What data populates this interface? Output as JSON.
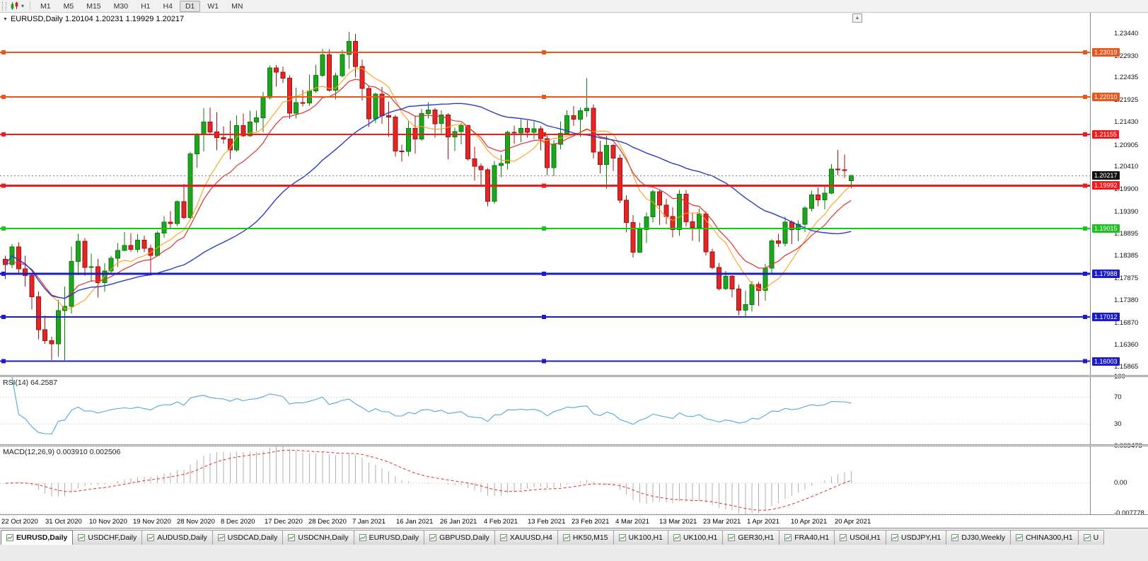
{
  "toolbar": {
    "timeframes": [
      "M1",
      "M5",
      "M15",
      "M30",
      "H1",
      "H4",
      "D1",
      "W1",
      "MN"
    ],
    "active_timeframe": "D1"
  },
  "icons": {
    "one_click": "▼",
    "shift_marker": "▲",
    "dropdown": "▾"
  },
  "chart": {
    "header_text": "EURUSD,Daily 1.20104 1.20231 1.19929 1.20217",
    "symbol": "EURUSD,Daily",
    "open": "1.20104",
    "high": "1.20231",
    "low": "1.19929",
    "close": "1.20217"
  },
  "chart_data": {
    "type": "candlestick",
    "symbol": "EURUSD",
    "timeframe": "Daily",
    "price_axis_ticks": [
      "1.23440",
      "1.22930",
      "1.22435",
      "1.21925",
      "1.21430",
      "1.20905",
      "1.20410",
      "1.19900",
      "1.19390",
      "1.18895",
      "1.18385",
      "1.17875",
      "1.17380",
      "1.16870",
      "1.16360",
      "1.15865"
    ],
    "current_price": {
      "value": 1.20217,
      "label": "1.20217"
    },
    "hlines": [
      {
        "price": 1.23019,
        "label": "1.23019",
        "color": "#e8571e",
        "width": 2
      },
      {
        "price": 1.2201,
        "label": "1.22010",
        "color": "#e8571e",
        "width": 2
      },
      {
        "price": 1.21155,
        "label": "1.21155",
        "color": "#ee1c1c",
        "width": 2
      },
      {
        "price": 1.19992,
        "label": "1.19992",
        "color": "#ee1c1c",
        "width": 3
      },
      {
        "price": 1.19015,
        "label": "1.19015",
        "color": "#1ec21e",
        "width": 2
      },
      {
        "price": 1.17988,
        "label": "1.17988",
        "color": "#1c1ccc",
        "width": 3
      },
      {
        "price": 1.17012,
        "label": "1.17012",
        "color": "#1c1ccc",
        "width": 2
      },
      {
        "price": 1.16003,
        "label": "1.16003",
        "color": "#1c1ccc",
        "width": 2
      }
    ],
    "date_ticks": [
      "22 Oct 2020",
      "31 Oct 2020",
      "10 Nov 2020",
      "19 Nov 2020",
      "28 Nov 2020",
      "8 Dec 2020",
      "17 Dec 2020",
      "28 Dec 2020",
      "7 Jan 2021",
      "16 Jan 2021",
      "26 Jan 2021",
      "4 Feb 2021",
      "13 Feb 2021",
      "23 Feb 2021",
      "4 Mar 2021",
      "13 Mar 2021",
      "23 Mar 2021",
      "1 Apr 2021",
      "10 Apr 2021",
      "20 Apr 2021"
    ],
    "rsi": {
      "label": "RSI(14) 64.2587",
      "value": 64.2587,
      "levels": [
        100,
        70,
        30
      ],
      "dotted_levels": [
        70,
        30
      ],
      "range": [
        0,
        100
      ]
    },
    "macd": {
      "label": "MACD(12,26,9) 0.003910 0.002506",
      "value": 0.00391,
      "signal": 0.002506,
      "axis_ticks": [
        {
          "label": "0.009478",
          "value": 0.009478
        },
        {
          "label": "0.00",
          "value": 0
        },
        {
          "label": "-0.007778",
          "value": -0.007778
        }
      ]
    },
    "style": {
      "bull_body": "#1da51d",
      "bull_border": "#0d7c0d",
      "bear_body": "#e22525",
      "bear_border": "#a31111",
      "ma_fast": "#ff9f1a",
      "ma_mid": "#e03030",
      "ma_slow": "#2a3ccc",
      "rsi_line": "#55a7d8",
      "macd_hist": "#b2b2b2",
      "macd_signal": "#e03030",
      "grid_dotted": "#c6c6c6",
      "current_price_bg": "#101010"
    },
    "candles": [
      [
        1.1832,
        1.184,
        1.1787,
        1.182
      ],
      [
        1.182,
        1.1866,
        1.1812,
        1.186
      ],
      [
        1.186,
        1.187,
        1.18,
        1.181
      ],
      [
        1.181,
        1.184,
        1.177,
        1.1795
      ],
      [
        1.1795,
        1.18,
        1.1718,
        1.1747
      ],
      [
        1.1747,
        1.1759,
        1.165,
        1.1672
      ],
      [
        1.1672,
        1.1704,
        1.164,
        1.1647
      ],
      [
        1.1647,
        1.1656,
        1.1603,
        1.164
      ],
      [
        1.164,
        1.174,
        1.161,
        1.1715
      ],
      [
        1.1715,
        1.177,
        1.1603,
        1.1725
      ],
      [
        1.1725,
        1.1861,
        1.1709,
        1.1827
      ],
      [
        1.1827,
        1.189,
        1.1796,
        1.1873
      ],
      [
        1.1873,
        1.188,
        1.1795,
        1.1813
      ],
      [
        1.1813,
        1.1845,
        1.1781,
        1.1815
      ],
      [
        1.1815,
        1.1833,
        1.1745,
        1.1779
      ],
      [
        1.1779,
        1.1823,
        1.1758,
        1.1805
      ],
      [
        1.1805,
        1.184,
        1.1799,
        1.1834
      ],
      [
        1.1834,
        1.1869,
        1.1814,
        1.1852
      ],
      [
        1.1852,
        1.1894,
        1.185,
        1.1863
      ],
      [
        1.1863,
        1.1891,
        1.1849,
        1.1854
      ],
      [
        1.1854,
        1.1889,
        1.1847,
        1.1875
      ],
      [
        1.1875,
        1.1886,
        1.1848,
        1.1857
      ],
      [
        1.1857,
        1.1865,
        1.18,
        1.1841
      ],
      [
        1.1841,
        1.1895,
        1.184,
        1.1891
      ],
      [
        1.1891,
        1.193,
        1.1881,
        1.1916
      ],
      [
        1.1916,
        1.1941,
        1.1902,
        1.1913
      ],
      [
        1.1913,
        1.1965,
        1.1907,
        1.1963
      ],
      [
        1.1963,
        1.2003,
        1.1923,
        1.1927
      ],
      [
        1.1927,
        1.2076,
        1.1923,
        1.2071
      ],
      [
        1.2071,
        1.2119,
        1.204,
        1.2115
      ],
      [
        1.2115,
        1.2175,
        1.2077,
        1.2144
      ],
      [
        1.2144,
        1.2177,
        1.2115,
        1.2121
      ],
      [
        1.2121,
        1.2166,
        1.2079,
        1.2108
      ],
      [
        1.2108,
        1.2134,
        1.2095,
        1.2105
      ],
      [
        1.2105,
        1.2147,
        1.2059,
        1.208
      ],
      [
        1.208,
        1.2159,
        1.2076,
        1.2136
      ],
      [
        1.2136,
        1.2163,
        1.211,
        1.2112
      ],
      [
        1.2112,
        1.2169,
        1.211,
        1.2144
      ],
      [
        1.2144,
        1.2169,
        1.2123,
        1.2153
      ],
      [
        1.2153,
        1.2212,
        1.212,
        1.2199
      ],
      [
        1.2199,
        1.2272,
        1.2195,
        1.2267
      ],
      [
        1.2267,
        1.2273,
        1.2224,
        1.2257
      ],
      [
        1.2257,
        1.227,
        1.2232,
        1.2243
      ],
      [
        1.2243,
        1.225,
        1.2151,
        1.2164
      ],
      [
        1.2164,
        1.2222,
        1.2152,
        1.2188
      ],
      [
        1.2188,
        1.2217,
        1.2179,
        1.2187
      ],
      [
        1.2187,
        1.2251,
        1.2181,
        1.2214
      ],
      [
        1.2214,
        1.2274,
        1.221,
        1.225
      ],
      [
        1.225,
        1.231,
        1.2246,
        1.2296
      ],
      [
        1.2296,
        1.2309,
        1.2213,
        1.2216
      ],
      [
        1.2216,
        1.2255,
        1.2195,
        1.2249
      ],
      [
        1.2249,
        1.2308,
        1.2245,
        1.2297
      ],
      [
        1.2297,
        1.2349,
        1.2265,
        1.2327
      ],
      [
        1.2327,
        1.2344,
        1.2246,
        1.227
      ],
      [
        1.227,
        1.2285,
        1.2193,
        1.222
      ],
      [
        1.222,
        1.2226,
        1.2132,
        1.2151
      ],
      [
        1.2151,
        1.221,
        1.2141,
        1.2207
      ],
      [
        1.2207,
        1.2223,
        1.214,
        1.2158
      ],
      [
        1.2158,
        1.219,
        1.2111,
        1.2155
      ],
      [
        1.2155,
        1.216,
        1.2065,
        1.2078
      ],
      [
        1.2078,
        1.2092,
        1.2054,
        1.2077
      ],
      [
        1.2077,
        1.2145,
        1.2066,
        1.2129
      ],
      [
        1.2129,
        1.2158,
        1.2072,
        1.2105
      ],
      [
        1.2105,
        1.2173,
        1.2101,
        1.2163
      ],
      [
        1.2163,
        1.2189,
        1.2152,
        1.2171
      ],
      [
        1.2171,
        1.2176,
        1.2108,
        1.214
      ],
      [
        1.214,
        1.217,
        1.2116,
        1.216
      ],
      [
        1.216,
        1.2164,
        1.2059,
        1.211
      ],
      [
        1.211,
        1.2131,
        1.2078,
        1.2122
      ],
      [
        1.2122,
        1.2142,
        1.2093,
        1.2136
      ],
      [
        1.2136,
        1.2137,
        1.2056,
        1.206
      ],
      [
        1.206,
        1.2087,
        1.2011,
        1.2043
      ],
      [
        1.2043,
        1.205,
        1.1999,
        1.2035
      ],
      [
        1.2035,
        1.2039,
        1.1952,
        1.1964
      ],
      [
        1.1964,
        1.2055,
        1.1958,
        1.2045
      ],
      [
        1.2045,
        1.2069,
        1.2018,
        1.205
      ],
      [
        1.205,
        1.2124,
        1.2036,
        1.212
      ],
      [
        1.212,
        1.2136,
        1.2095,
        1.2119
      ],
      [
        1.2119,
        1.215,
        1.2098,
        1.2129
      ],
      [
        1.2129,
        1.2148,
        1.2108,
        1.212
      ],
      [
        1.212,
        1.2145,
        1.2105,
        1.2128
      ],
      [
        1.2128,
        1.2135,
        1.2079,
        1.2106
      ],
      [
        1.2106,
        1.2113,
        1.2023,
        1.204
      ],
      [
        1.204,
        1.2103,
        1.2021,
        1.2093
      ],
      [
        1.2093,
        1.2145,
        1.2082,
        1.2118
      ],
      [
        1.2118,
        1.217,
        1.2115,
        1.2158
      ],
      [
        1.2158,
        1.218,
        1.2135,
        1.215
      ],
      [
        1.215,
        1.2177,
        1.211,
        1.2169
      ],
      [
        1.2169,
        1.2243,
        1.2156,
        1.2175
      ],
      [
        1.2175,
        1.2184,
        1.2061,
        1.2075
      ],
      [
        1.2075,
        1.2101,
        1.2027,
        1.2047
      ],
      [
        1.2047,
        1.2113,
        1.1992,
        1.2091
      ],
      [
        1.2091,
        1.2094,
        1.2033,
        1.2062
      ],
      [
        1.2062,
        1.207,
        1.196,
        1.1966
      ],
      [
        1.1966,
        1.1977,
        1.1893,
        1.1915
      ],
      [
        1.1915,
        1.1932,
        1.1836,
        1.1848
      ],
      [
        1.1848,
        1.1915,
        1.1846,
        1.1899
      ],
      [
        1.1899,
        1.1938,
        1.1869,
        1.1928
      ],
      [
        1.1928,
        1.199,
        1.1915,
        1.1985
      ],
      [
        1.1985,
        1.199,
        1.191,
        1.1955
      ],
      [
        1.1955,
        1.1969,
        1.1911,
        1.1929
      ],
      [
        1.1929,
        1.195,
        1.1882,
        1.1899
      ],
      [
        1.1899,
        1.1989,
        1.1885,
        1.198
      ],
      [
        1.198,
        1.1989,
        1.1906,
        1.1917
      ],
      [
        1.1917,
        1.1936,
        1.1874,
        1.1904
      ],
      [
        1.1904,
        1.1947,
        1.1871,
        1.1935
      ],
      [
        1.1935,
        1.194,
        1.1841,
        1.1849
      ],
      [
        1.1849,
        1.1856,
        1.1809,
        1.1813
      ],
      [
        1.1813,
        1.1824,
        1.1761,
        1.1765
      ],
      [
        1.1765,
        1.1805,
        1.1762,
        1.1793
      ],
      [
        1.1793,
        1.1796,
        1.1745,
        1.1764
      ],
      [
        1.1764,
        1.1774,
        1.1704,
        1.1716
      ],
      [
        1.1716,
        1.176,
        1.17,
        1.1729
      ],
      [
        1.1729,
        1.1782,
        1.1713,
        1.1775
      ],
      [
        1.1775,
        1.178,
        1.1726,
        1.1761
      ],
      [
        1.1761,
        1.1821,
        1.1738,
        1.1812
      ],
      [
        1.1812,
        1.1878,
        1.1797,
        1.1874
      ],
      [
        1.1874,
        1.189,
        1.186,
        1.1868
      ],
      [
        1.1868,
        1.1928,
        1.1861,
        1.1916
      ],
      [
        1.1916,
        1.192,
        1.1866,
        1.1899
      ],
      [
        1.1899,
        1.192,
        1.1873,
        1.1911
      ],
      [
        1.1911,
        1.1952,
        1.1894,
        1.1948
      ],
      [
        1.1948,
        1.1988,
        1.194,
        1.1978
      ],
      [
        1.1978,
        1.1995,
        1.1952,
        1.1967
      ],
      [
        1.1967,
        1.1999,
        1.1945,
        1.1982
      ],
      [
        1.1982,
        1.2048,
        1.198,
        1.2037
      ],
      [
        1.2037,
        1.208,
        1.2023,
        1.2035
      ],
      [
        1.2035,
        1.207,
        1.2017,
        1.2034
      ],
      [
        1.201,
        1.2023,
        1.1993,
        1.2022
      ]
    ]
  },
  "tabs": [
    {
      "label": "EURUSD,Daily",
      "active": true
    },
    {
      "label": "USDCHF,Daily",
      "active": false
    },
    {
      "label": "AUDUSD,Daily",
      "active": false
    },
    {
      "label": "USDCAD,Daily",
      "active": false
    },
    {
      "label": "USDCNH,Daily",
      "active": false
    },
    {
      "label": "EURUSD,Daily",
      "active": false
    },
    {
      "label": "GBPUSD,Daily",
      "active": false
    },
    {
      "label": "XAUUSD,H4",
      "active": false
    },
    {
      "label": "HK50,M15",
      "active": false
    },
    {
      "label": "UK100,H1",
      "active": false
    },
    {
      "label": "UK100,H1",
      "active": false
    },
    {
      "label": "GER30,H1",
      "active": false
    },
    {
      "label": "FRA40,H1",
      "active": false
    },
    {
      "label": "USOil,H1",
      "active": false
    },
    {
      "label": "USDJPY,H1",
      "active": false
    },
    {
      "label": "DJ30,Weekly",
      "active": false
    },
    {
      "label": "CHINA300,H1",
      "active": false
    },
    {
      "label": "U",
      "active": false
    }
  ]
}
